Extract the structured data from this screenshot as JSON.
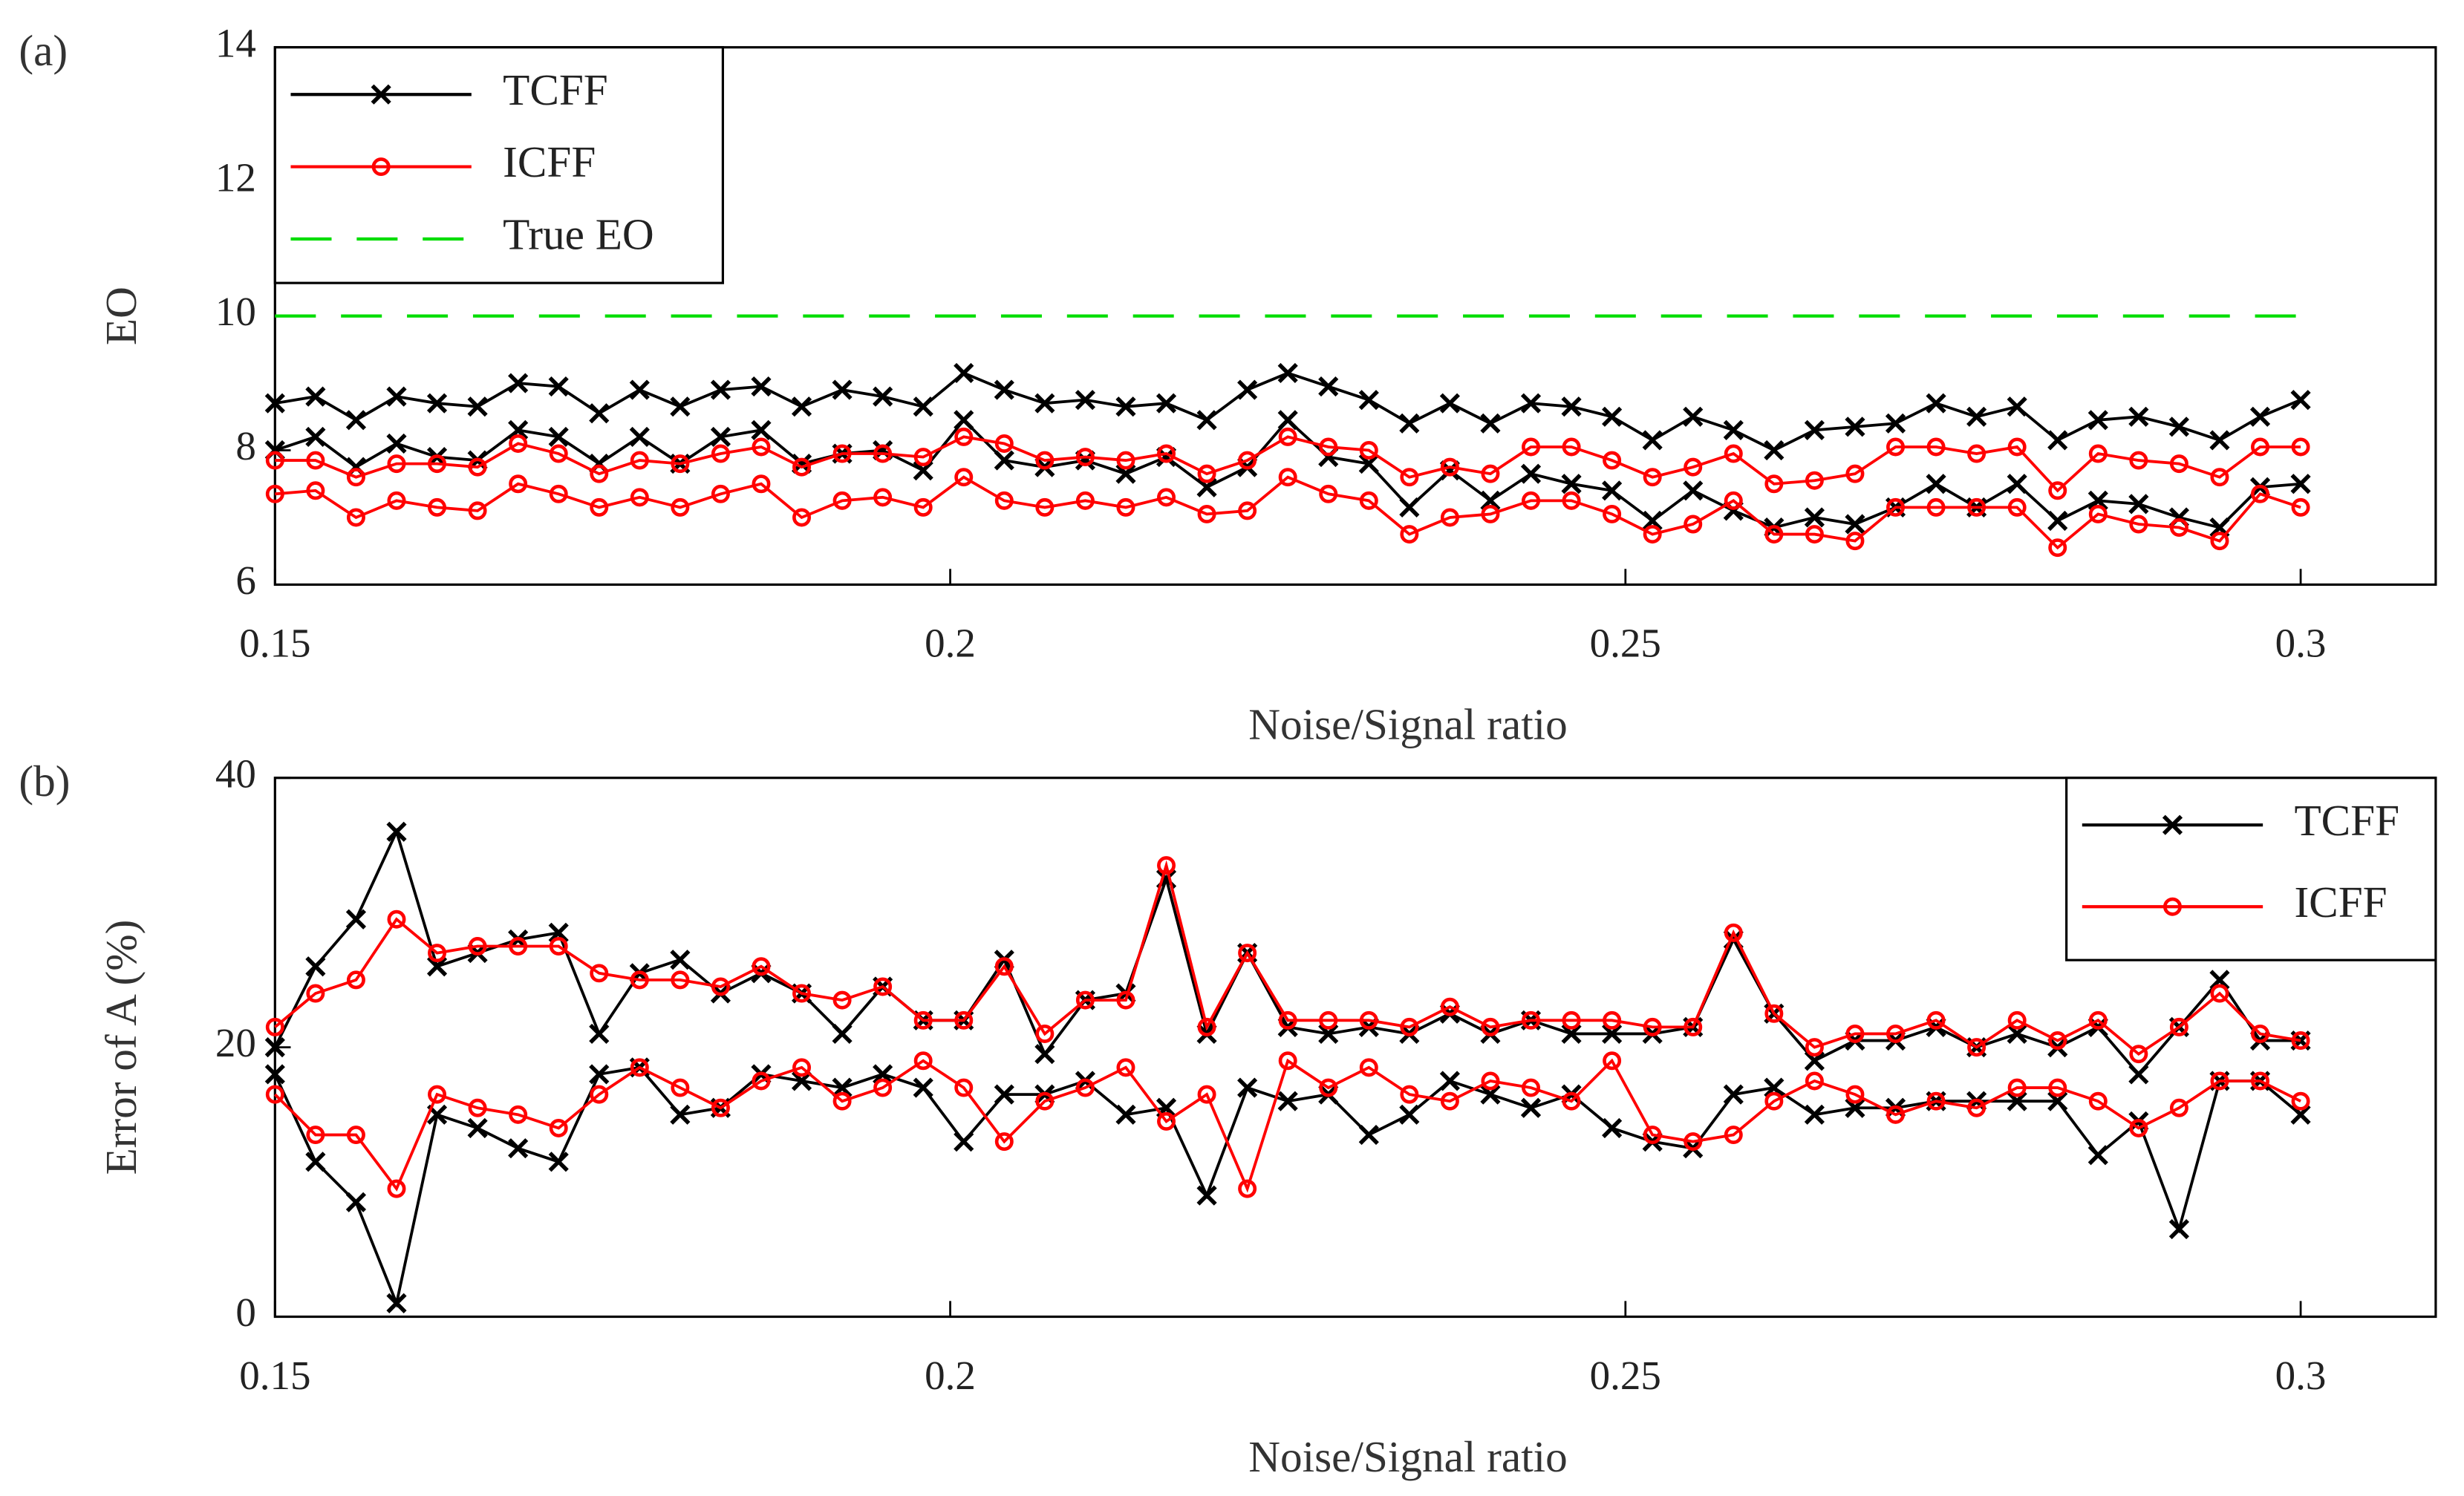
{
  "chart_data": [
    {
      "type": "line",
      "panel_label": "(a)",
      "xlabel": "Noise/Signal ratio",
      "ylabel": "EO",
      "x": [
        0.15,
        0.153,
        0.156,
        0.159,
        0.162,
        0.165,
        0.168,
        0.171,
        0.174,
        0.177,
        0.18,
        0.183,
        0.186,
        0.189,
        0.192,
        0.195,
        0.198,
        0.201,
        0.204,
        0.207,
        0.21,
        0.213,
        0.216,
        0.219,
        0.222,
        0.225,
        0.228,
        0.231,
        0.234,
        0.237,
        0.24,
        0.243,
        0.246,
        0.249,
        0.252,
        0.255,
        0.258,
        0.261,
        0.264,
        0.267,
        0.27,
        0.273,
        0.276,
        0.279,
        0.282,
        0.285,
        0.288,
        0.291,
        0.294,
        0.297,
        0.3
      ],
      "xlim": [
        0.15,
        0.31
      ],
      "xticks": [
        0.15,
        0.2,
        0.25,
        0.3
      ],
      "ylim": [
        6,
        14
      ],
      "yticks": [
        6,
        8,
        10,
        12,
        14
      ],
      "legend": "upper left",
      "series": [
        {
          "name": "TCFF",
          "color": "#000000",
          "marker": "x",
          "upper": [
            8.7,
            8.8,
            8.45,
            8.8,
            8.7,
            8.65,
            9.0,
            8.95,
            8.55,
            8.9,
            8.65,
            8.9,
            8.95,
            8.65,
            8.9,
            8.8,
            8.65,
            9.15,
            8.9,
            8.7,
            8.75,
            8.65,
            8.7,
            8.45,
            8.9,
            9.15,
            8.95,
            8.75,
            8.4,
            8.7,
            8.4,
            8.7,
            8.65,
            8.5,
            8.15,
            8.5,
            8.3,
            8.0,
            8.3,
            8.35,
            8.4,
            8.7,
            8.5,
            8.65,
            8.15,
            8.45,
            8.5,
            8.35,
            8.15,
            8.5,
            8.75
          ],
          "lower": [
            8.0,
            8.2,
            7.75,
            8.1,
            7.9,
            7.85,
            8.3,
            8.2,
            7.8,
            8.2,
            7.8,
            8.2,
            8.3,
            7.8,
            7.95,
            8.0,
            7.7,
            8.45,
            7.85,
            7.75,
            7.85,
            7.65,
            7.9,
            7.45,
            7.75,
            8.45,
            7.9,
            7.8,
            7.15,
            7.7,
            7.25,
            7.65,
            7.5,
            7.4,
            6.95,
            7.4,
            7.1,
            6.85,
            7.0,
            6.9,
            7.15,
            7.5,
            7.15,
            7.5,
            6.95,
            7.25,
            7.2,
            7.0,
            6.85,
            7.45,
            7.5
          ]
        },
        {
          "name": "ICFF",
          "color": "#ff0000",
          "marker": "o",
          "upper": [
            7.85,
            7.85,
            7.6,
            7.8,
            7.8,
            7.75,
            8.1,
            7.95,
            7.65,
            7.85,
            7.8,
            7.95,
            8.05,
            7.75,
            7.95,
            7.95,
            7.9,
            8.2,
            8.1,
            7.85,
            7.9,
            7.85,
            7.95,
            7.65,
            7.85,
            8.2,
            8.05,
            8.0,
            7.6,
            7.75,
            7.65,
            8.05,
            8.05,
            7.85,
            7.6,
            7.75,
            7.95,
            7.5,
            7.55,
            7.65,
            8.05,
            8.05,
            7.95,
            8.05,
            7.4,
            7.95,
            7.85,
            7.8,
            7.6,
            8.05,
            8.05
          ],
          "lower": [
            7.35,
            7.4,
            7.0,
            7.25,
            7.15,
            7.1,
            7.5,
            7.35,
            7.15,
            7.3,
            7.15,
            7.35,
            7.5,
            7.0,
            7.25,
            7.3,
            7.15,
            7.6,
            7.25,
            7.15,
            7.25,
            7.15,
            7.3,
            7.05,
            7.1,
            7.6,
            7.35,
            7.25,
            6.75,
            7.0,
            7.05,
            7.25,
            7.25,
            7.05,
            6.75,
            6.9,
            7.25,
            6.75,
            6.75,
            6.65,
            7.15,
            7.15,
            7.15,
            7.15,
            6.55,
            7.05,
            6.9,
            6.85,
            6.65,
            7.35,
            7.15
          ]
        },
        {
          "name": "True EO",
          "color": "#00dd00",
          "dashed": true,
          "value": 10
        }
      ]
    },
    {
      "type": "line",
      "panel_label": "(b)",
      "xlabel": "Noise/Signal ratio",
      "ylabel": "Error of A (%)",
      "x": [
        0.15,
        0.153,
        0.156,
        0.159,
        0.162,
        0.165,
        0.168,
        0.171,
        0.174,
        0.177,
        0.18,
        0.183,
        0.186,
        0.189,
        0.192,
        0.195,
        0.198,
        0.201,
        0.204,
        0.207,
        0.21,
        0.213,
        0.216,
        0.219,
        0.222,
        0.225,
        0.228,
        0.231,
        0.234,
        0.237,
        0.24,
        0.243,
        0.246,
        0.249,
        0.252,
        0.255,
        0.258,
        0.261,
        0.264,
        0.267,
        0.27,
        0.273,
        0.276,
        0.279,
        0.282,
        0.285,
        0.288,
        0.291,
        0.294,
        0.297,
        0.3
      ],
      "xlim": [
        0.15,
        0.31
      ],
      "xticks": [
        0.15,
        0.2,
        0.25,
        0.3
      ],
      "ylim": [
        0,
        40
      ],
      "yticks": [
        0,
        20,
        40
      ],
      "legend": "upper right",
      "series": [
        {
          "name": "TCFF",
          "color": "#000000",
          "marker": "x",
          "upper": [
            20,
            26,
            29.5,
            36,
            26,
            27,
            28,
            28.5,
            21,
            25.5,
            26.5,
            24,
            25.5,
            24,
            21,
            24.5,
            22,
            22,
            26.5,
            19.5,
            23.5,
            24,
            32.5,
            21,
            27,
            21.5,
            21,
            21.5,
            21,
            22.5,
            21,
            22,
            21,
            21,
            21,
            21.5,
            28,
            22.5,
            19,
            20.5,
            20.5,
            21.5,
            20,
            21,
            20,
            21.5,
            18,
            21.5,
            25,
            20.5,
            20.5
          ],
          "lower": [
            18,
            11.5,
            8.5,
            1,
            15,
            14,
            12.5,
            11.5,
            18,
            18.5,
            15,
            15.5,
            18,
            17.5,
            17,
            18,
            17,
            13,
            16.5,
            16.5,
            17.5,
            15,
            15.5,
            9,
            17,
            16,
            16.5,
            13.5,
            15,
            17.5,
            16.5,
            15.5,
            16.5,
            14,
            13,
            12.5,
            16.5,
            17,
            15,
            15.5,
            15.5,
            16,
            16,
            16,
            16,
            12,
            14.5,
            6.5,
            17.5,
            17.5,
            15
          ]
        },
        {
          "name": "ICFF",
          "color": "#ff0000",
          "marker": "o",
          "upper": [
            21.5,
            24,
            25,
            29.5,
            27,
            27.5,
            27.5,
            27.5,
            25.5,
            25,
            25,
            24.5,
            26,
            24,
            23.5,
            24.5,
            22,
            22,
            26,
            21,
            23.5,
            23.5,
            33.5,
            21.5,
            27,
            22,
            22,
            22,
            21.5,
            23,
            21.5,
            22,
            22,
            22,
            21.5,
            21.5,
            28.5,
            22.5,
            20,
            21,
            21,
            22,
            20,
            22,
            20.5,
            22,
            19.5,
            21.5,
            24,
            21,
            20.5
          ],
          "lower": [
            16.5,
            13.5,
            13.5,
            9.5,
            16.5,
            15.5,
            15,
            14,
            16.5,
            18.5,
            17,
            15.5,
            17.5,
            18.5,
            16,
            17,
            19,
            17,
            13,
            16,
            17,
            18.5,
            14.5,
            16.5,
            9.5,
            19,
            17,
            18.5,
            16.5,
            16,
            17.5,
            17,
            16,
            19,
            13.5,
            13,
            13.5,
            16,
            17.5,
            16.5,
            15,
            16,
            15.5,
            17,
            17,
            16,
            14,
            15.5,
            17.5,
            17.5,
            16
          ]
        }
      ]
    }
  ]
}
